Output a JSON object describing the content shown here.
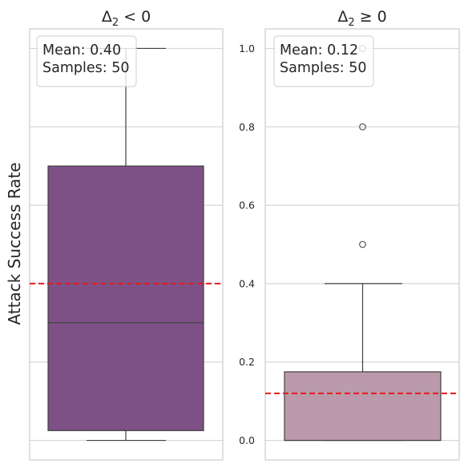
{
  "chart_data": {
    "type": "box",
    "ylabel": "Attack Success Rate",
    "ylim": [
      -0.05,
      1.05
    ],
    "yticks": [
      0.0,
      0.2,
      0.4,
      0.6,
      0.8,
      1.0
    ],
    "ytick_labels": [
      "0.0",
      "0.2",
      "0.4",
      "0.6",
      "0.8",
      "1.0"
    ],
    "grid": true,
    "panels": [
      {
        "title_main": "Δ",
        "title_sub": "2",
        "title_rest": " < 0",
        "fill_color": "#7e5186",
        "stats": {
          "whisker_low": 0.0,
          "q1": 0.025,
          "median": 0.3,
          "q3": 0.7,
          "whisker_high": 1.0
        },
        "outliers": [],
        "mean": 0.4,
        "mean_line_color": "#e41a1c",
        "info_lines": [
          "Mean: 0.40",
          "Samples: 50"
        ],
        "show_ytick_labels": false
      },
      {
        "title_main": "Δ",
        "title_sub": "2",
        "title_rest": " ≥ 0",
        "fill_color": "#bb9aab",
        "stats": {
          "whisker_low": 0.0,
          "q1": 0.0,
          "median": 0.0,
          "q3": 0.175,
          "whisker_high": 0.4
        },
        "outliers": [
          0.5,
          0.8,
          1.0
        ],
        "mean": 0.12,
        "mean_line_color": "#e41a1c",
        "info_lines": [
          "Mean: 0.12",
          "Samples: 50"
        ],
        "show_ytick_labels": true
      }
    ]
  }
}
